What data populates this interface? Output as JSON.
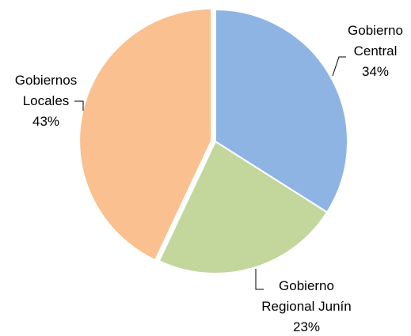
{
  "chart_data": {
    "type": "pie",
    "categories": [
      "Gobierno Central",
      "Gobierno Regional Junín",
      "Gobiernos Locales"
    ],
    "values": [
      34,
      23,
      43
    ],
    "value_labels": [
      "34%",
      "23%",
      "43%"
    ],
    "colors": [
      "#8eb4e3",
      "#c3d69b",
      "#fac090"
    ]
  }
}
